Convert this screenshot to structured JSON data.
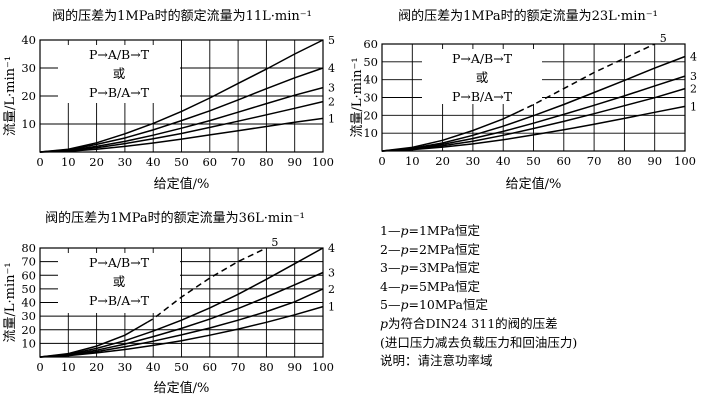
{
  "legend": {
    "items": [
      {
        "id": "1",
        "lead": "1—",
        "p": "p",
        "rest": "=1MPa恒定"
      },
      {
        "id": "2",
        "lead": "2—",
        "p": "p",
        "rest": "=2MPa恒定"
      },
      {
        "id": "3",
        "lead": "3—",
        "p": "p",
        "rest": "=3MPa恒定"
      },
      {
        "id": "4",
        "lead": "4—",
        "p": "p",
        "rest": "=5MPa恒定"
      },
      {
        "id": "5",
        "lead": "5—",
        "p": "p",
        "rest": "=10MPa恒定"
      }
    ],
    "p_symbol": "p",
    "p_note": "为符合DIN24  311的阀的压差",
    "paren_note": "(进口压力减去负载压力和回油压力)",
    "remark": "说明：请注意功率域"
  },
  "chart_data": [
    {
      "type": "line",
      "title": "阀的压差为1MPa时的额定流量为11L·min⁻¹",
      "xlabel": "给定值/%",
      "ylabel": "流量/L·min⁻¹",
      "xlim": [
        0,
        100
      ],
      "ylim": [
        0,
        40
      ],
      "xticks": [
        "0",
        "10",
        "20",
        "30",
        "40",
        "50",
        "60",
        "70",
        "80",
        "90",
        "100"
      ],
      "yticks": [
        "10",
        "20",
        "30",
        "40"
      ],
      "inset_text": [
        "P→A/B→T",
        "或",
        "P→B/A→T"
      ],
      "x": [
        0,
        10,
        20,
        30,
        40,
        50,
        60,
        70,
        80,
        90,
        100
      ],
      "series": [
        {
          "name": "1",
          "values": [
            0,
            0.3,
            1.0,
            2.0,
            3.2,
            4.6,
            6.1,
            7.6,
            9.1,
            10.6,
            12.0
          ],
          "dashed": false
        },
        {
          "name": "2",
          "values": [
            0,
            0.5,
            1.5,
            3.0,
            4.7,
            6.6,
            8.8,
            11.0,
            13.3,
            15.6,
            18.0
          ],
          "dashed": false
        },
        {
          "name": "3",
          "values": [
            0,
            0.6,
            2.0,
            3.8,
            6.0,
            8.5,
            11.2,
            14.2,
            17.3,
            20.3,
            23.0
          ],
          "dashed": false
        },
        {
          "name": "4",
          "values": [
            0,
            0.8,
            2.7,
            5.0,
            7.9,
            11.2,
            14.7,
            18.6,
            22.6,
            26.5,
            30.0
          ],
          "dashed": false
        },
        {
          "name": "5",
          "values": [
            0,
            1.0,
            3.3,
            6.5,
            10.2,
            14.5,
            19.3,
            24.5,
            29.6,
            35.0,
            40.0
          ],
          "dashed": false
        }
      ],
      "label_series": [
        "5",
        "4",
        "3",
        "2",
        "1"
      ],
      "grid": true
    },
    {
      "type": "line",
      "title": "阀的压差为1MPa时的额定流量为23L·min⁻¹",
      "xlabel": "给定值/%",
      "ylabel": "流量/L·min⁻¹",
      "xlim": [
        0,
        100
      ],
      "ylim": [
        0,
        60
      ],
      "xticks": [
        "0",
        "10",
        "20",
        "30",
        "40",
        "50",
        "60",
        "70",
        "80",
        "90",
        "100"
      ],
      "yticks": [
        "10",
        "20",
        "30",
        "40",
        "50",
        "60"
      ],
      "inset_text": [
        "P→A/B→T",
        "或",
        "P→B/A→T"
      ],
      "x": [
        0,
        10,
        20,
        30,
        40,
        50,
        60,
        70,
        80,
        90,
        100
      ],
      "series": [
        {
          "name": "1",
          "values": [
            0,
            0.8,
            2.2,
            4.0,
            6.3,
            9.0,
            11.9,
            15.0,
            18.3,
            21.7,
            25.0
          ],
          "dashed": false
        },
        {
          "name": "2",
          "values": [
            0,
            1.0,
            3.0,
            5.5,
            8.8,
            12.6,
            16.6,
            20.9,
            25.4,
            29.9,
            35.0
          ],
          "dashed": false
        },
        {
          "name": "3",
          "values": [
            0,
            1.2,
            3.7,
            7.0,
            11.0,
            15.6,
            20.5,
            25.6,
            30.9,
            36.5,
            42.0
          ],
          "dashed": false
        },
        {
          "name": "4",
          "values": [
            0,
            1.5,
            4.5,
            8.8,
            13.9,
            19.8,
            26.1,
            32.8,
            39.6,
            46.5,
            53.0
          ],
          "dashed": false
        },
        {
          "name": "5",
          "values": [
            0,
            2.0,
            6.0,
            11.5,
            18.0,
            26.0,
            35.0,
            44.0,
            52.0,
            60.0,
            null
          ],
          "dashed": true,
          "dash_from": 45
        }
      ],
      "label_series": [
        "5",
        "4",
        "3",
        "2",
        "1"
      ],
      "grid": true
    },
    {
      "type": "line",
      "title": "阀的压差为1MPa时的额定流量为36L·min⁻¹",
      "xlabel": "给定值/%",
      "ylabel": "流量/L·min⁻¹",
      "xlim": [
        0,
        100
      ],
      "ylim": [
        0,
        80
      ],
      "xticks": [
        "0",
        "10",
        "20",
        "30",
        "40",
        "50",
        "60",
        "70",
        "80",
        "90",
        "100"
      ],
      "yticks": [
        "10",
        "20",
        "30",
        "40",
        "50",
        "60",
        "70",
        "80"
      ],
      "inset_text": [
        "P→A/B→T",
        "或",
        "P→B/A→T"
      ],
      "x": [
        0,
        10,
        20,
        30,
        40,
        50,
        60,
        70,
        80,
        90,
        100
      ],
      "series": [
        {
          "name": "1",
          "values": [
            0,
            1.0,
            3.0,
            5.5,
            8.5,
            12.0,
            16.0,
            20.5,
            25.5,
            31.0,
            37.0
          ],
          "dashed": false
        },
        {
          "name": "2",
          "values": [
            0,
            1.3,
            4.0,
            7.5,
            11.6,
            16.2,
            21.3,
            27.0,
            33.3,
            40.5,
            50.0
          ],
          "dashed": false
        },
        {
          "name": "3",
          "values": [
            0,
            1.6,
            5.0,
            9.5,
            15.0,
            21.0,
            27.8,
            35.5,
            44.0,
            53.0,
            62.0
          ],
          "dashed": false
        },
        {
          "name": "4",
          "values": [
            0,
            2.0,
            6.3,
            12.0,
            19.0,
            27.0,
            36.0,
            46.0,
            57.0,
            68.5,
            80.0
          ],
          "dashed": false
        },
        {
          "name": "5",
          "values": [
            0,
            2.5,
            8.0,
            16.0,
            28.0,
            44.0,
            58.0,
            70.0,
            80.0,
            null,
            null
          ],
          "dashed": true,
          "dash_from": 38
        }
      ],
      "label_series": [
        "5",
        "4",
        "3",
        "2",
        "1"
      ],
      "grid": true
    }
  ]
}
